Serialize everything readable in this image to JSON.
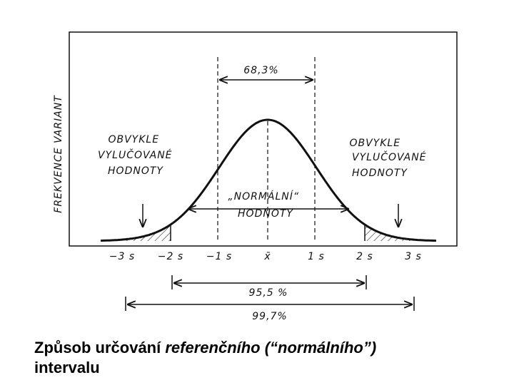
{
  "diagram": {
    "y_axis_label": "FREKVENCE VARIANT",
    "span_label": "68,3%",
    "left_note": [
      "OBVYKLE",
      "VYLUČOVANÉ",
      "HODNOTY"
    ],
    "right_note": [
      "OBVYKLE",
      "VYLUČOVANÉ",
      "HODNOTY"
    ],
    "center_note": [
      "„NORMÁLNÍ“",
      "HODNOTY"
    ],
    "x_labels": [
      "−3 s",
      "−2 s",
      "−1 s",
      "x̄",
      "1 s",
      "2 s",
      "3 s"
    ],
    "interval_95": "95,5 %",
    "interval_99": "99,7%"
  },
  "caption": {
    "normal": "Způsob určování ",
    "italic": "referenčního (“normálního”)",
    "line2": "intervalu"
  }
}
